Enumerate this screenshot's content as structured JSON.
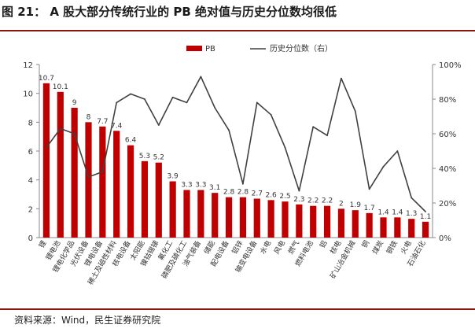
{
  "header": {
    "title": "图 21： A 股大部分传统行业的 PB 绝对值与历史分位数均很低"
  },
  "footer": {
    "source": "资料来源：Wind，民生证券研究院"
  },
  "colors": {
    "accent": "#8a1512",
    "bar": "#c00000",
    "line": "#404040"
  },
  "chart_data": {
    "type": "bar",
    "categories": [
      "锂",
      "锂电池",
      "锂电化学品",
      "光伏设备",
      "锂电设备",
      "稀土及磁性材料",
      "核电设备",
      "太阳能",
      "镍钴锡锑",
      "氟化工",
      "磷肥及磷化工",
      "油气装备",
      "储能",
      "配电设备",
      "铝锌",
      "输变电设备",
      "水电",
      "风电",
      "燃气",
      "燃料电池",
      "铝",
      "核电",
      "矿山冶金机械",
      "铜",
      "煤炭",
      "钢铁",
      "火电",
      "石油石化"
    ],
    "series": [
      {
        "name": "PB",
        "type": "bar",
        "axis": "left",
        "values": [
          10.7,
          10.1,
          9.0,
          8.0,
          7.7,
          7.4,
          6.4,
          5.3,
          5.2,
          3.9,
          3.3,
          3.3,
          3.1,
          2.8,
          2.8,
          2.7,
          2.6,
          2.5,
          2.3,
          2.2,
          2.2,
          2.0,
          1.9,
          1.7,
          1.4,
          1.4,
          1.3,
          1.1
        ]
      },
      {
        "name": "历史分位数（右）",
        "type": "line",
        "axis": "right",
        "values": [
          52,
          63,
          60,
          35,
          38,
          78,
          83,
          80,
          65,
          81,
          78,
          93,
          75,
          62,
          31,
          78,
          71,
          52,
          27,
          64,
          59,
          92,
          73,
          28,
          41,
          50,
          23,
          15
        ]
      }
    ],
    "left_axis": {
      "ylim": [
        0,
        12
      ],
      "ticks": [
        "0",
        "2",
        "4",
        "6",
        "8",
        "10",
        "12"
      ]
    },
    "right_axis": {
      "ylim": [
        0,
        100
      ],
      "ticks": [
        "0%",
        "20%",
        "40%",
        "60%",
        "80%",
        "100%"
      ]
    },
    "legend_position": "top-left",
    "grid": false
  }
}
